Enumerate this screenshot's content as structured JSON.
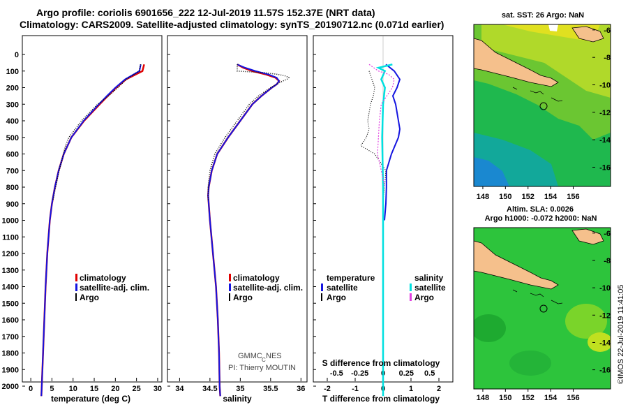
{
  "title_line1": "Argo profile: coriolis 6901656_222 12-Jul-2019 11.57S 152.37E (NRT data)",
  "title_line2": "Climatology: CARS2009. Satellite-adjusted climatology: synTS_20190712.nc (0.071d earlier)",
  "colors": {
    "climatology": "#e00000",
    "satellite": "#1414e0",
    "argo": "#000000",
    "sat_salinity": "#00e0e0",
    "argo_salinity": "#e040e0"
  },
  "depth_ticks": [
    "0",
    "100",
    "200",
    "300",
    "400",
    "500",
    "600",
    "700",
    "800",
    "900",
    "1000",
    "1100",
    "1200",
    "1300",
    "1400",
    "1500",
    "1600",
    "1700",
    "1800",
    "1900",
    "2000"
  ],
  "temp_ticks": [
    "0",
    "5",
    "10",
    "15",
    "20",
    "25",
    "30"
  ],
  "sal_ticks": [
    "34",
    "34.5",
    "35",
    "35.5",
    "36"
  ],
  "sdiff_ticks": [
    "-0.5",
    "-0.25",
    "0",
    "0.25",
    "0.5"
  ],
  "tdiff_ticks": [
    "-2",
    "-1",
    "0",
    "1",
    "2"
  ],
  "xlabel_temp": "temperature (deg C)",
  "xlabel_sal": "salinity",
  "xlabel_tdiff": "T difference from climatology",
  "label_sdiff": "S difference from climatology",
  "legend": {
    "climatology": "climatology",
    "satellite": "satellite-adj. clim.",
    "argo": "Argo"
  },
  "diff_legend": {
    "temperature": "temperature",
    "salinity": "salinity",
    "satellite": "satellite",
    "argo": "Argo"
  },
  "credits": {
    "gmmc": "GMMC",
    "c_sub": "C",
    "nes": "NES",
    "pi": "PI: Thierry MOUTIN"
  },
  "map_top_title": "sat. SST: 26 Argo: NaN",
  "map_bottom_title1": "Altim. SLA: 0.0026",
  "map_bottom_title2": "Argo h1000: -0.072 h2000: NaN",
  "map_lat_ticks": [
    "-6",
    "-8",
    "-10",
    "-12",
    "-14",
    "-16"
  ],
  "map_lon_ticks": [
    "148",
    "150",
    "152",
    "154",
    "156"
  ],
  "timestamp": "©IMOS 22-Jul-2019 11:41:05",
  "chart_data": [
    {
      "type": "line",
      "name": "temperature",
      "xlim": [
        -2,
        31
      ],
      "ylim": [
        2080,
        0
      ],
      "series": [
        {
          "name": "climatology",
          "depth": [
            60,
            100,
            150,
            200,
            250,
            300,
            400,
            500,
            600,
            700,
            800,
            900,
            1000,
            1200,
            1400,
            1600,
            1800,
            2000,
            2060
          ],
          "values": [
            26.8,
            26.4,
            22.5,
            20.2,
            18.2,
            16.3,
            12.6,
            9.6,
            7.8,
            6.6,
            5.7,
            5.0,
            4.5,
            3.9,
            3.5,
            3.2,
            2.9,
            2.6,
            2.5
          ]
        },
        {
          "name": "satellite-adj. clim.",
          "depth": [
            60,
            100,
            150,
            200,
            250,
            300,
            400,
            500,
            600,
            700,
            800,
            900,
            1000,
            1200,
            1400,
            1600,
            1800,
            2000,
            2060
          ],
          "values": [
            26.0,
            25.7,
            22.3,
            20.0,
            18.0,
            16.1,
            12.5,
            9.6,
            7.8,
            6.6,
            5.7,
            5.0,
            4.5,
            3.9,
            3.5,
            3.2,
            2.9,
            2.6,
            2.5
          ]
        },
        {
          "name": "Argo",
          "depth": [
            60,
            100,
            150,
            200,
            250,
            300,
            400,
            500,
            550,
            600,
            700,
            800,
            880
          ],
          "values": [
            26.0,
            25.6,
            22.6,
            20.6,
            18.4,
            15.8,
            12.0,
            9.0,
            8.2,
            7.7,
            6.7,
            5.9,
            5.2
          ]
        }
      ]
    },
    {
      "type": "line",
      "name": "salinity",
      "xlim": [
        33.8,
        36.1
      ],
      "ylim": [
        2080,
        0
      ],
      "series": [
        {
          "name": "climatology",
          "depth": [
            60,
            80,
            100,
            120,
            140,
            160,
            180,
            200,
            250,
            300,
            400,
            500,
            600,
            700,
            800,
            850,
            900,
            1000,
            1200,
            1400,
            1600,
            1800,
            2000,
            2060
          ],
          "values": [
            34.95,
            35.05,
            35.2,
            35.42,
            35.58,
            35.64,
            35.6,
            35.52,
            35.35,
            35.2,
            35.0,
            34.8,
            34.62,
            34.53,
            34.48,
            34.47,
            34.48,
            34.5,
            34.55,
            34.6,
            34.63,
            34.65,
            34.66,
            34.67
          ]
        },
        {
          "name": "satellite-adj. clim.",
          "depth": [
            60,
            80,
            100,
            120,
            140,
            160,
            180,
            200,
            250,
            300,
            400,
            500,
            600,
            700,
            800,
            850,
            900,
            1000,
            1200,
            1400,
            1600,
            1800,
            2000,
            2060
          ],
          "values": [
            34.95,
            35.08,
            35.25,
            35.46,
            35.6,
            35.64,
            35.6,
            35.52,
            35.35,
            35.2,
            35.0,
            34.8,
            34.62,
            34.53,
            34.48,
            34.47,
            34.48,
            34.5,
            34.55,
            34.6,
            34.63,
            34.65,
            34.66,
            34.67
          ]
        },
        {
          "name": "Argo",
          "depth": [
            60,
            100,
            110,
            120,
            130,
            140,
            150,
            160,
            180,
            200,
            250,
            300,
            400,
            500,
            600,
            700,
            800,
            880
          ],
          "values": [
            34.95,
            34.95,
            35.4,
            35.62,
            35.75,
            35.8,
            35.77,
            35.7,
            35.6,
            35.5,
            35.3,
            35.15,
            34.95,
            34.75,
            34.58,
            34.5,
            34.47,
            34.47
          ]
        }
      ]
    },
    {
      "type": "line",
      "name": "T difference from climatology",
      "xlim": [
        -2.5,
        2.5
      ],
      "ylim": [
        2080,
        0
      ],
      "series": [
        {
          "name": "temperature satellite",
          "depth": [
            60,
            100,
            150,
            200,
            250,
            300,
            400,
            450,
            500,
            600,
            700,
            800,
            900,
            1000
          ],
          "values": [
            0.1,
            0.4,
            0.6,
            0.5,
            0.35,
            0.45,
            0.55,
            0.6,
            0.55,
            0.3,
            0.12,
            0.12,
            0.1,
            0.05
          ]
        },
        {
          "name": "temperature Argo",
          "depth": [
            100,
            150,
            200,
            250,
            300,
            350,
            400,
            450,
            500,
            550,
            600,
            650,
            700,
            800,
            880
          ],
          "values": [
            -0.5,
            -0.4,
            -0.3,
            -0.35,
            -0.45,
            -0.5,
            -0.55,
            -0.5,
            -0.6,
            -0.8,
            -0.3,
            -0.1,
            0.1,
            0.05,
            0.0
          ]
        },
        {
          "name": "salinity satellite",
          "depth": [
            60,
            80,
            100,
            150,
            200,
            300,
            500,
            800,
            1200,
            1600,
            2000,
            2060
          ],
          "values": [
            0.1,
            -0.05,
            0.02,
            -0.02,
            0.02,
            0.0,
            -0.01,
            0.0,
            0.0,
            0.0,
            0.0,
            0.0
          ]
        },
        {
          "name": "salinity Argo",
          "depth": [
            60,
            80,
            100,
            120,
            150,
            200,
            300,
            400,
            500,
            600,
            700,
            800
          ],
          "values": [
            -0.15,
            -0.1,
            -0.05,
            0.06,
            0.12,
            0.1,
            -0.02,
            -0.04,
            -0.05,
            -0.06,
            -0.02,
            0.02
          ]
        }
      ]
    }
  ]
}
